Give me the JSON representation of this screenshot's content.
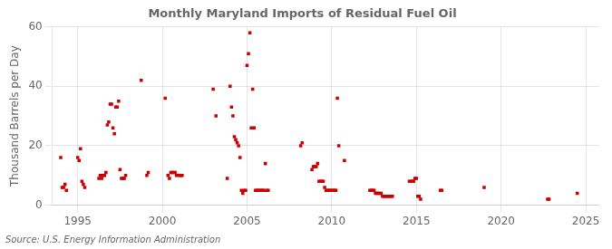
{
  "chart_data": {
    "type": "scatter",
    "title": "Monthly Maryland Imports of Residual Fuel Oil",
    "ylabel": "Thousand Barrels per Day",
    "annotation": "Source: U.S. Energy Information Administration",
    "color": "#cc0000",
    "marker": "square",
    "grid": true,
    "xlim": [
      1993.5,
      2025.8
    ],
    "xticks": [
      1995,
      2000,
      2005,
      2010,
      2015,
      2020,
      2025
    ],
    "ylim": [
      0,
      60
    ],
    "yticks": [
      0,
      20,
      40,
      60
    ],
    "x": [
      1994.0,
      1994.083,
      1994.167,
      1994.25,
      1994.333,
      1995.0,
      1995.083,
      1995.167,
      1995.25,
      1995.333,
      1995.417,
      1996.25,
      1996.333,
      1996.417,
      1996.5,
      1996.583,
      1996.667,
      1996.75,
      1996.833,
      1996.917,
      1997.0,
      1997.083,
      1997.167,
      1997.25,
      1997.333,
      1997.417,
      1997.5,
      1997.583,
      1997.667,
      1997.75,
      1997.833,
      1998.75,
      1999.083,
      1999.167,
      2000.167,
      2000.333,
      2000.417,
      2000.5,
      2000.583,
      2000.667,
      2000.75,
      2000.833,
      2001.0,
      2001.083,
      2001.167,
      2003.0,
      2003.167,
      2003.833,
      2004.0,
      2004.083,
      2004.167,
      2004.25,
      2004.333,
      2004.417,
      2004.5,
      2004.583,
      2004.667,
      2004.75,
      2004.833,
      2004.917,
      2005.0,
      2005.083,
      2005.167,
      2005.25,
      2005.333,
      2005.417,
      2005.5,
      2005.583,
      2005.667,
      2005.75,
      2005.833,
      2005.917,
      2006.0,
      2006.083,
      2006.167,
      2006.25,
      2008.167,
      2008.25,
      2008.833,
      2008.917,
      2009.0,
      2009.083,
      2009.167,
      2009.25,
      2009.333,
      2009.417,
      2009.5,
      2009.583,
      2009.667,
      2009.75,
      2009.833,
      2009.917,
      2010.0,
      2010.083,
      2010.167,
      2010.25,
      2010.333,
      2010.417,
      2010.75,
      2012.25,
      2012.333,
      2012.417,
      2012.5,
      2012.583,
      2012.667,
      2012.75,
      2012.833,
      2012.917,
      2013.0,
      2013.083,
      2013.167,
      2013.25,
      2013.333,
      2013.417,
      2013.5,
      2013.583,
      2014.583,
      2014.667,
      2014.75,
      2014.833,
      2014.917,
      2015.0,
      2015.083,
      2015.167,
      2015.25,
      2016.417,
      2016.5,
      2019.0,
      2022.75,
      2022.833,
      2024.5
    ],
    "values": [
      16.0,
      6.0,
      6.0,
      7.0,
      5.0,
      16.0,
      15.0,
      19.0,
      8.0,
      7.0,
      6.0,
      9.0,
      10.0,
      9.0,
      10.0,
      10.0,
      11.0,
      27.0,
      28.0,
      34.0,
      34.0,
      26.0,
      24.0,
      33.0,
      33.0,
      35.0,
      12.0,
      9.0,
      9.0,
      9.0,
      10.0,
      42.0,
      10.0,
      11.0,
      36.0,
      10.0,
      9.0,
      11.0,
      11.0,
      11.0,
      11.0,
      10.0,
      10.0,
      10.0,
      10.0,
      39.0,
      30.0,
      9.0,
      40.0,
      33.0,
      30.0,
      23.0,
      22.0,
      21.0,
      20.0,
      16.0,
      5.0,
      4.0,
      5.0,
      5.0,
      47.0,
      51.0,
      58.0,
      26.0,
      39.0,
      26.0,
      5.0,
      5.0,
      5.0,
      5.0,
      5.0,
      5.0,
      5.0,
      14.0,
      5.0,
      5.0,
      20.0,
      21.0,
      12.0,
      13.0,
      13.0,
      13.0,
      14.0,
      8.0,
      8.0,
      8.0,
      8.0,
      6.0,
      5.0,
      5.0,
      5.0,
      5.0,
      5.0,
      5.0,
      5.0,
      5.0,
      36.0,
      20.0,
      15.0,
      5.0,
      5.0,
      5.0,
      5.0,
      4.0,
      4.0,
      4.0,
      4.0,
      4.0,
      3.0,
      3.0,
      3.0,
      3.0,
      3.0,
      3.0,
      3.0,
      3.0,
      8.0,
      8.0,
      8.0,
      8.0,
      9.0,
      9.0,
      3.0,
      3.0,
      2.0,
      5.0,
      5.0,
      6.0,
      2.0,
      2.0,
      4.0
    ]
  }
}
